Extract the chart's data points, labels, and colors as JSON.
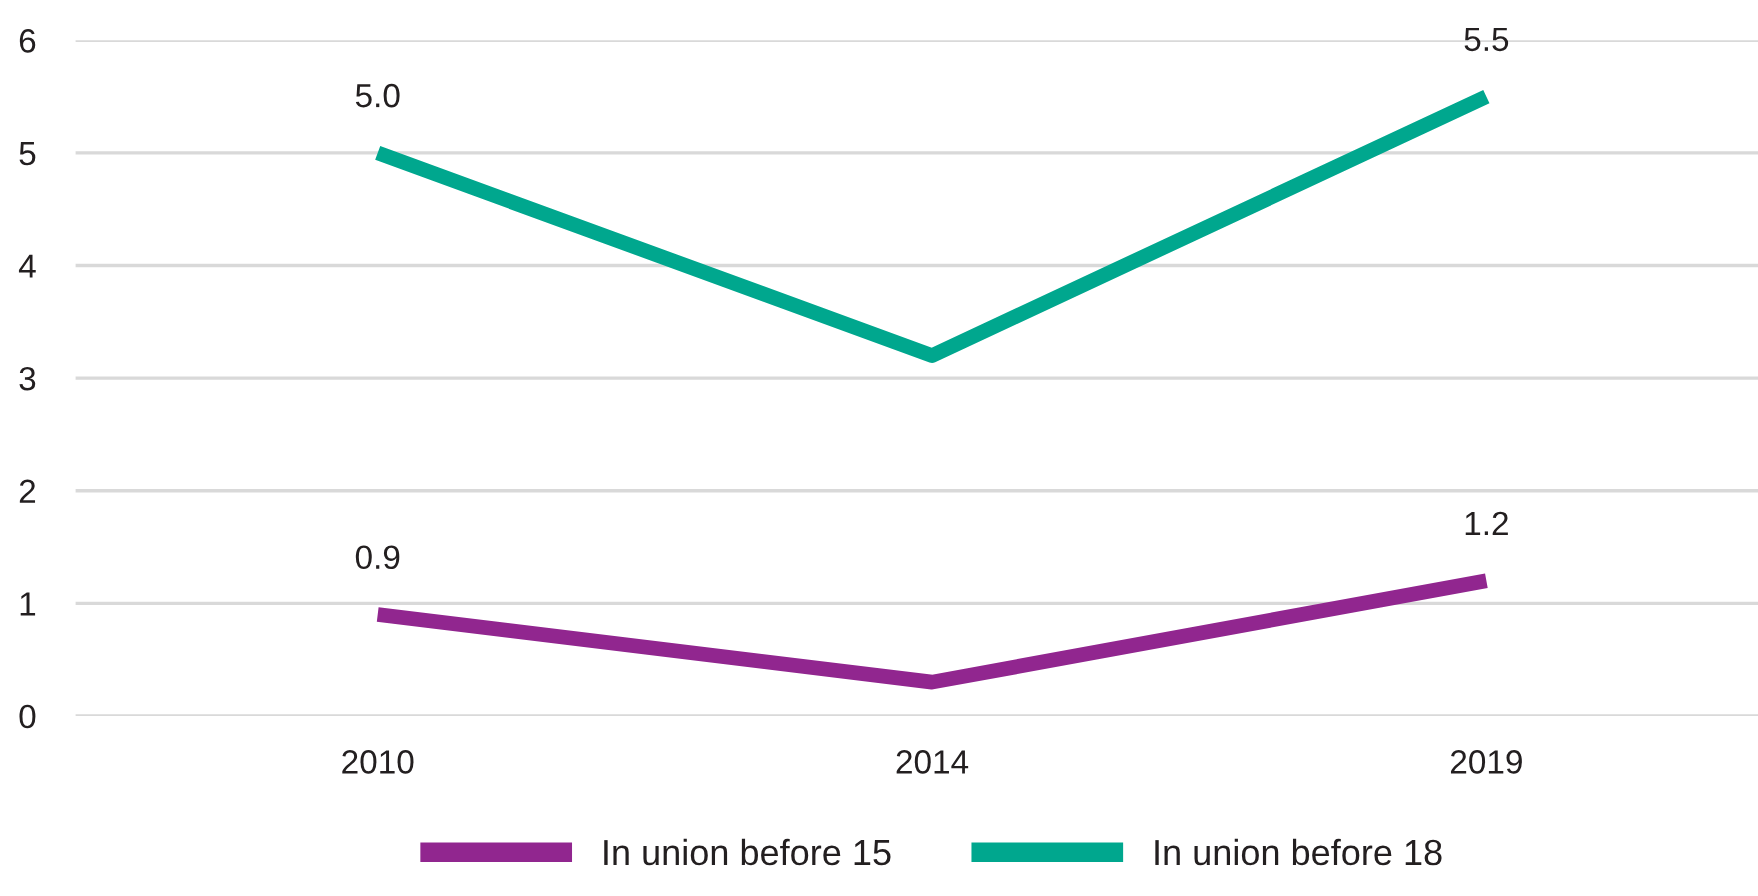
{
  "chart_data": {
    "type": "line",
    "categories": [
      "2010",
      "2014",
      "2019"
    ],
    "series": [
      {
        "name": "In union before 15",
        "color": "#91268f",
        "values": [
          0.9,
          0.3,
          1.2
        ],
        "value_labels": [
          "0.9",
          null,
          "1.2"
        ]
      },
      {
        "name": "In union before 18",
        "color": "#00a78e",
        "values": [
          5.0,
          3.2,
          5.5
        ],
        "value_labels": [
          "5.0",
          null,
          "5.5"
        ]
      }
    ],
    "ylim": [
      0,
      6
    ],
    "yticks": [
      0,
      1,
      2,
      3,
      4,
      5,
      6
    ],
    "grid": "y",
    "legend": "bottom",
    "marker": "none",
    "line_style": "solid"
  }
}
